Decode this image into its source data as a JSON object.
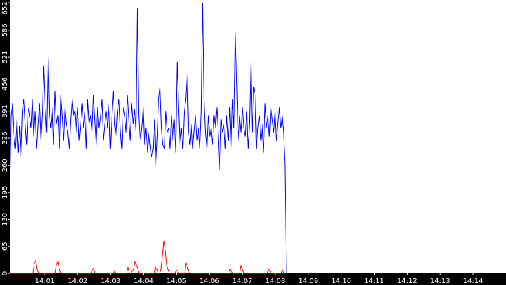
{
  "chart_data": {
    "type": "line",
    "title": "",
    "xlabel": "",
    "ylabel": "",
    "ylim": [
      0,
      652
    ],
    "yticks": [
      "0",
      "65",
      "130",
      "195",
      "260",
      "326",
      "391",
      "456",
      "521",
      "586",
      "652"
    ],
    "xticks": [
      "14:01",
      "14:02",
      "14:03",
      "14:04",
      "14:05",
      "14:06",
      "14:07",
      "14:08",
      "14:09",
      "14:10",
      "14:11",
      "14:12",
      "14:13",
      "14:14"
    ],
    "grid": false,
    "legend": "none",
    "series": [
      {
        "color": "#0000ff",
        "values": [
          200,
          380,
          410,
          335,
          300,
          370,
          290,
          355,
          280,
          390,
          420,
          360,
          310,
          400,
          380,
          350,
          420,
          330,
          390,
          300,
          360,
          410,
          320,
          380,
          500,
          400,
          340,
          520,
          380,
          350,
          400,
          310,
          440,
          360,
          380,
          300,
          430,
          380,
          320,
          400,
          360,
          340,
          300,
          370,
          420,
          380,
          390,
          340,
          400,
          320,
          360,
          410,
          350,
          390,
          300,
          420,
          360,
          380,
          340,
          430,
          370,
          310,
          400,
          350,
          380,
          420,
          320,
          360,
          390,
          350,
          410,
          300,
          380,
          440,
          360,
          330,
          390,
          420,
          350,
          300,
          400,
          380,
          340,
          430,
          370,
          320,
          410,
          360,
          395,
          340,
          640,
          380,
          320,
          350,
          400,
          310,
          350,
          290,
          340,
          310,
          280,
          300,
          370,
          260,
          330,
          420,
          450,
          350,
          310,
          300,
          390,
          340,
          350,
          300,
          380,
          320,
          370,
          290,
          510,
          400,
          310,
          350,
          300,
          390,
          420,
          480,
          340,
          310,
          360,
          300,
          340,
          380,
          320,
          350,
          300,
          390,
          652,
          420,
          340,
          300,
          380,
          330,
          350,
          310,
          380,
          350,
          400,
          330,
          250,
          370,
          340,
          360,
          300,
          380,
          320,
          400,
          300,
          420,
          350,
          580,
          450,
          320,
          380,
          340,
          400,
          350,
          330,
          390,
          300,
          360,
          510,
          340,
          450,
          430,
          300,
          350,
          380,
          320,
          360,
          290,
          410,
          350,
          380,
          330,
          400,
          370,
          340,
          390,
          320,
          360,
          400,
          350,
          380,
          340,
          260,
          0
        ]
      },
      {
        "color": "#ff0000",
        "values": [
          0,
          0,
          0,
          0,
          0,
          0,
          0,
          0,
          0,
          0,
          0,
          0,
          0,
          0,
          0,
          0,
          0,
          0,
          25,
          30,
          10,
          0,
          0,
          0,
          0,
          0,
          0,
          0,
          0,
          0,
          0,
          0,
          0,
          0,
          20,
          28,
          10,
          0,
          0,
          0,
          0,
          0,
          0,
          0,
          0,
          0,
          0,
          0,
          0,
          0,
          0,
          0,
          0,
          0,
          0,
          0,
          0,
          0,
          0,
          0,
          8,
          12,
          0,
          0,
          0,
          0,
          0,
          0,
          0,
          0,
          0,
          0,
          0,
          0,
          0,
          0,
          5,
          0,
          0,
          0,
          0,
          0,
          0,
          0,
          0,
          0,
          15,
          0,
          0,
          5,
          10,
          28,
          20,
          12,
          0,
          0,
          0,
          0,
          0,
          0,
          0,
          0,
          0,
          0,
          0,
          0,
          15,
          10,
          0,
          0,
          10,
          40,
          78,
          55,
          20,
          10,
          0,
          0,
          0,
          0,
          0,
          8,
          5,
          0,
          0,
          0,
          0,
          0,
          25,
          15,
          5,
          0,
          0,
          0,
          0,
          0,
          0,
          0,
          0,
          0,
          0,
          0,
          0,
          0,
          0,
          0,
          0,
          0,
          0,
          0,
          0,
          0,
          0,
          0,
          0,
          0,
          0,
          0,
          0,
          0,
          10,
          5,
          0,
          0,
          0,
          0,
          0,
          0,
          18,
          10,
          0,
          0,
          0,
          0,
          0,
          0,
          0,
          0,
          0,
          0,
          0,
          0,
          0,
          0,
          0,
          0,
          0,
          0,
          10,
          5,
          0,
          0,
          0,
          0,
          0,
          0,
          0,
          0,
          8,
          0,
          0,
          0
        ]
      }
    ]
  }
}
